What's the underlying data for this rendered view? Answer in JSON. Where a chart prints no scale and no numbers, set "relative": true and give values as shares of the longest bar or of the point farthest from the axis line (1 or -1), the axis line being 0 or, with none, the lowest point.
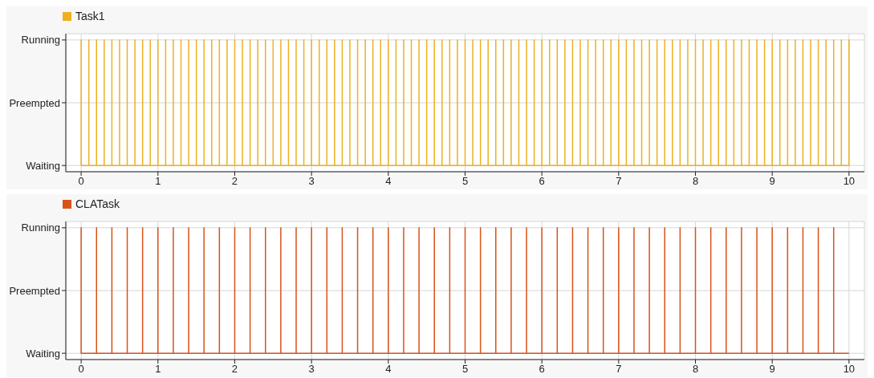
{
  "chart_data": [
    {
      "type": "line",
      "legend": "top left",
      "grid": true,
      "relative": true,
      "xlim": [
        -0.2,
        10.2
      ],
      "xticks": [
        0,
        1,
        2,
        3,
        4,
        5,
        6,
        7,
        8,
        9,
        10
      ],
      "annotations": [
        "Running",
        "Preempted",
        "Waiting"
      ],
      "series": [
        {
          "name": "Task1",
          "color": "#edb120",
          "x": [
            0,
            0,
            0,
            0.1,
            0.1,
            0.1,
            0.2,
            0.2,
            0.2,
            0.3,
            0.3,
            0.3,
            0.4,
            0.4,
            0.4,
            0.5,
            0.5,
            0.5,
            0.6,
            0.6,
            0.6,
            0.7,
            0.7,
            0.7,
            0.8,
            0.8,
            0.8,
            0.9,
            0.9,
            0.9,
            1,
            1,
            1,
            1.1,
            1.1,
            1.1,
            1.2,
            1.2,
            1.2,
            1.3,
            1.3,
            1.3,
            1.4,
            1.4,
            1.4,
            1.5,
            1.5,
            1.5,
            1.6,
            1.6,
            1.6,
            1.7,
            1.7,
            1.7,
            1.8,
            1.8,
            1.8,
            1.9,
            1.9,
            1.9,
            2,
            2,
            2,
            2.1,
            2.1,
            2.1,
            2.2,
            2.2,
            2.2,
            2.3,
            2.3,
            2.3,
            2.4,
            2.4,
            2.4,
            2.5,
            2.5,
            2.5,
            2.6,
            2.6,
            2.6,
            2.7,
            2.7,
            2.7,
            2.8,
            2.8,
            2.8,
            2.9,
            2.9,
            2.9,
            3,
            3,
            3,
            3.1,
            3.1,
            3.1,
            3.2,
            3.2,
            3.2,
            3.3,
            3.3,
            3.3,
            3.4,
            3.4,
            3.4,
            3.5,
            3.5,
            3.5,
            3.6,
            3.6,
            3.6,
            3.7,
            3.7,
            3.7,
            3.8,
            3.8,
            3.8,
            3.9,
            3.9,
            3.9,
            4,
            4,
            4,
            4.1,
            4.1,
            4.1,
            4.2,
            4.2,
            4.2,
            4.3,
            4.3,
            4.3,
            4.4,
            4.4,
            4.4,
            4.5,
            4.5,
            4.5,
            4.6,
            4.6,
            4.6,
            4.7,
            4.7,
            4.7,
            4.8,
            4.8,
            4.8,
            4.9,
            4.9,
            4.9,
            5,
            5,
            5,
            5.1,
            5.1,
            5.1,
            5.2,
            5.2,
            5.2,
            5.3,
            5.3,
            5.3,
            5.4,
            5.4,
            5.4,
            5.5,
            5.5,
            5.5,
            5.6,
            5.6,
            5.6,
            5.7,
            5.7,
            5.7,
            5.8,
            5.8,
            5.8,
            5.9,
            5.9,
            5.9,
            6,
            6,
            6,
            6.1,
            6.1,
            6.1,
            6.2,
            6.2,
            6.2,
            6.3,
            6.3,
            6.3,
            6.4,
            6.4,
            6.4,
            6.5,
            6.5,
            6.5,
            6.6,
            6.6,
            6.6,
            6.7,
            6.7,
            6.7,
            6.8,
            6.8,
            6.8,
            6.9,
            6.9,
            6.9,
            7,
            7,
            7,
            7.1,
            7.1,
            7.1,
            7.2,
            7.2,
            7.2,
            7.3,
            7.3,
            7.3,
            7.4,
            7.4,
            7.4,
            7.5,
            7.5,
            7.5,
            7.6,
            7.6,
            7.6,
            7.7,
            7.7,
            7.7,
            7.8,
            7.8,
            7.8,
            7.9,
            7.9,
            7.9,
            8,
            8,
            8,
            8.1,
            8.1,
            8.1,
            8.2,
            8.2,
            8.2,
            8.3,
            8.3,
            8.3,
            8.4,
            8.4,
            8.4,
            8.5,
            8.5,
            8.5,
            8.6,
            8.6,
            8.6,
            8.7,
            8.7,
            8.7,
            8.8,
            8.8,
            8.8,
            8.9,
            8.9,
            8.9,
            9,
            9,
            9,
            9.1,
            9.1,
            9.1,
            9.2,
            9.2,
            9.2,
            9.3,
            9.3,
            9.3,
            9.4,
            9.4,
            9.4,
            9.5,
            9.5,
            9.5,
            9.6,
            9.6,
            9.6,
            9.7,
            9.7,
            9.7,
            9.8,
            9.8,
            9.8,
            9.9,
            9.9,
            9.9,
            10,
            10,
            10
          ],
          "values": [
            0,
            1,
            0,
            0,
            1,
            0,
            0,
            1,
            0,
            0,
            1,
            0,
            0,
            1,
            0,
            0,
            1,
            0,
            0,
            1,
            0,
            0,
            1,
            0,
            0,
            1,
            0,
            0,
            1,
            0,
            0,
            1,
            0,
            0,
            1,
            0,
            0,
            1,
            0,
            0,
            1,
            0,
            0,
            1,
            0,
            0,
            1,
            0,
            0,
            1,
            0,
            0,
            1,
            0,
            0,
            1,
            0,
            0,
            1,
            0,
            0,
            1,
            0,
            0,
            1,
            0,
            0,
            1,
            0,
            0,
            1,
            0,
            0,
            1,
            0,
            0,
            1,
            0,
            0,
            1,
            0,
            0,
            1,
            0,
            0,
            1,
            0,
            0,
            1,
            0,
            0,
            1,
            0,
            0,
            1,
            0,
            0,
            1,
            0,
            0,
            1,
            0,
            0,
            1,
            0,
            0,
            1,
            0,
            0,
            1,
            0,
            0,
            1,
            0,
            0,
            1,
            0,
            0,
            1,
            0,
            0,
            1,
            0,
            0,
            1,
            0,
            0,
            1,
            0,
            0,
            1,
            0,
            0,
            1,
            0,
            0,
            1,
            0,
            0,
            1,
            0,
            0,
            1,
            0,
            0,
            1,
            0,
            0,
            1,
            0,
            0,
            1,
            0,
            0,
            1,
            0,
            0,
            1,
            0,
            0,
            1,
            0,
            0,
            1,
            0,
            0,
            1,
            0,
            0,
            1,
            0,
            0,
            1,
            0,
            0,
            1,
            0,
            0,
            1,
            0,
            0,
            1,
            0,
            0,
            1,
            0,
            0,
            1,
            0,
            0,
            1,
            0,
            0,
            1,
            0,
            0,
            1,
            0,
            0,
            1,
            0,
            0,
            1,
            0,
            0,
            1,
            0,
            0,
            1,
            0,
            0,
            1,
            0,
            0,
            1,
            0,
            0,
            1,
            0,
            0,
            1,
            0,
            0,
            1,
            0,
            0,
            1,
            0,
            0,
            1,
            0,
            0,
            1,
            0,
            0,
            1,
            0,
            0,
            1,
            0,
            0,
            1,
            0,
            0,
            1,
            0,
            0,
            1,
            0,
            0,
            1,
            0,
            0,
            1,
            0,
            0,
            1,
            0,
            0,
            1,
            0,
            0,
            1,
            0,
            0,
            1,
            0,
            0,
            1,
            0,
            0,
            1,
            0,
            0,
            1,
            0,
            0,
            1,
            0,
            0,
            1,
            0,
            0,
            1,
            0,
            0,
            1,
            0,
            0,
            1,
            0,
            0,
            1,
            0,
            0,
            1,
            0,
            0,
            1,
            0,
            0,
            1,
            0
          ]
        }
      ]
    },
    {
      "type": "line",
      "legend": "top left",
      "grid": true,
      "relative": true,
      "xlim": [
        -0.2,
        10.2
      ],
      "xticks": [
        0,
        1,
        2,
        3,
        4,
        5,
        6,
        7,
        8,
        9,
        10
      ],
      "annotations": [
        "Running",
        "Preempted",
        "Waiting"
      ],
      "series": [
        {
          "name": "CLATask",
          "color": "#d95319",
          "x": [
            0,
            0,
            0,
            0.2,
            0.2,
            0.2,
            0.4,
            0.4,
            0.4,
            0.6,
            0.6,
            0.6,
            0.8,
            0.8,
            0.8,
            1,
            1,
            1,
            1.2,
            1.2,
            1.2,
            1.4,
            1.4,
            1.4,
            1.6,
            1.6,
            1.6,
            1.8,
            1.8,
            1.8,
            2,
            2,
            2,
            2.2,
            2.2,
            2.2,
            2.4,
            2.4,
            2.4,
            2.6,
            2.6,
            2.6,
            2.8,
            2.8,
            2.8,
            3,
            3,
            3,
            3.2,
            3.2,
            3.2,
            3.4,
            3.4,
            3.4,
            3.6,
            3.6,
            3.6,
            3.8,
            3.8,
            3.8,
            4,
            4,
            4,
            4.2,
            4.2,
            4.2,
            4.4,
            4.4,
            4.4,
            4.6,
            4.6,
            4.6,
            4.8,
            4.8,
            4.8,
            5,
            5,
            5,
            5.2,
            5.2,
            5.2,
            5.4,
            5.4,
            5.4,
            5.6,
            5.6,
            5.6,
            5.8,
            5.8,
            5.8,
            6,
            6,
            6,
            6.2,
            6.2,
            6.2,
            6.4,
            6.4,
            6.4,
            6.6,
            6.6,
            6.6,
            6.8,
            6.8,
            6.8,
            7,
            7,
            7,
            7.2,
            7.2,
            7.2,
            7.4,
            7.4,
            7.4,
            7.6,
            7.6,
            7.6,
            7.8,
            7.8,
            7.8,
            8,
            8,
            8,
            8.2,
            8.2,
            8.2,
            8.4,
            8.4,
            8.4,
            8.6,
            8.6,
            8.6,
            8.8,
            8.8,
            8.8,
            9,
            9,
            9,
            9.2,
            9.2,
            9.2,
            9.4,
            9.4,
            9.4,
            9.6,
            9.6,
            9.6,
            9.8,
            9.8,
            9.8,
            10
          ],
          "values": [
            0,
            1,
            0,
            0,
            1,
            0,
            0,
            1,
            0,
            0,
            1,
            0,
            0,
            1,
            0,
            0,
            1,
            0,
            0,
            1,
            0,
            0,
            1,
            0,
            0,
            1,
            0,
            0,
            1,
            0,
            0,
            1,
            0,
            0,
            1,
            0,
            0,
            1,
            0,
            0,
            1,
            0,
            0,
            1,
            0,
            0,
            1,
            0,
            0,
            1,
            0,
            0,
            1,
            0,
            0,
            1,
            0,
            0,
            1,
            0,
            0,
            1,
            0,
            0,
            1,
            0,
            0,
            1,
            0,
            0,
            1,
            0,
            0,
            1,
            0,
            0,
            1,
            0,
            0,
            1,
            0,
            0,
            1,
            0,
            0,
            1,
            0,
            0,
            1,
            0,
            0,
            1,
            0,
            0,
            1,
            0,
            0,
            1,
            0,
            0,
            1,
            0,
            0,
            1,
            0,
            0,
            1,
            0,
            0,
            1,
            0,
            0,
            1,
            0,
            0,
            1,
            0,
            0,
            1,
            0,
            0,
            1,
            0,
            0,
            1,
            0,
            0,
            1,
            0,
            0,
            1,
            0,
            0,
            1,
            0,
            0,
            1,
            0,
            0,
            1,
            0,
            0,
            1,
            0,
            0,
            1,
            0,
            0,
            1,
            0,
            0
          ]
        }
      ]
    }
  ]
}
